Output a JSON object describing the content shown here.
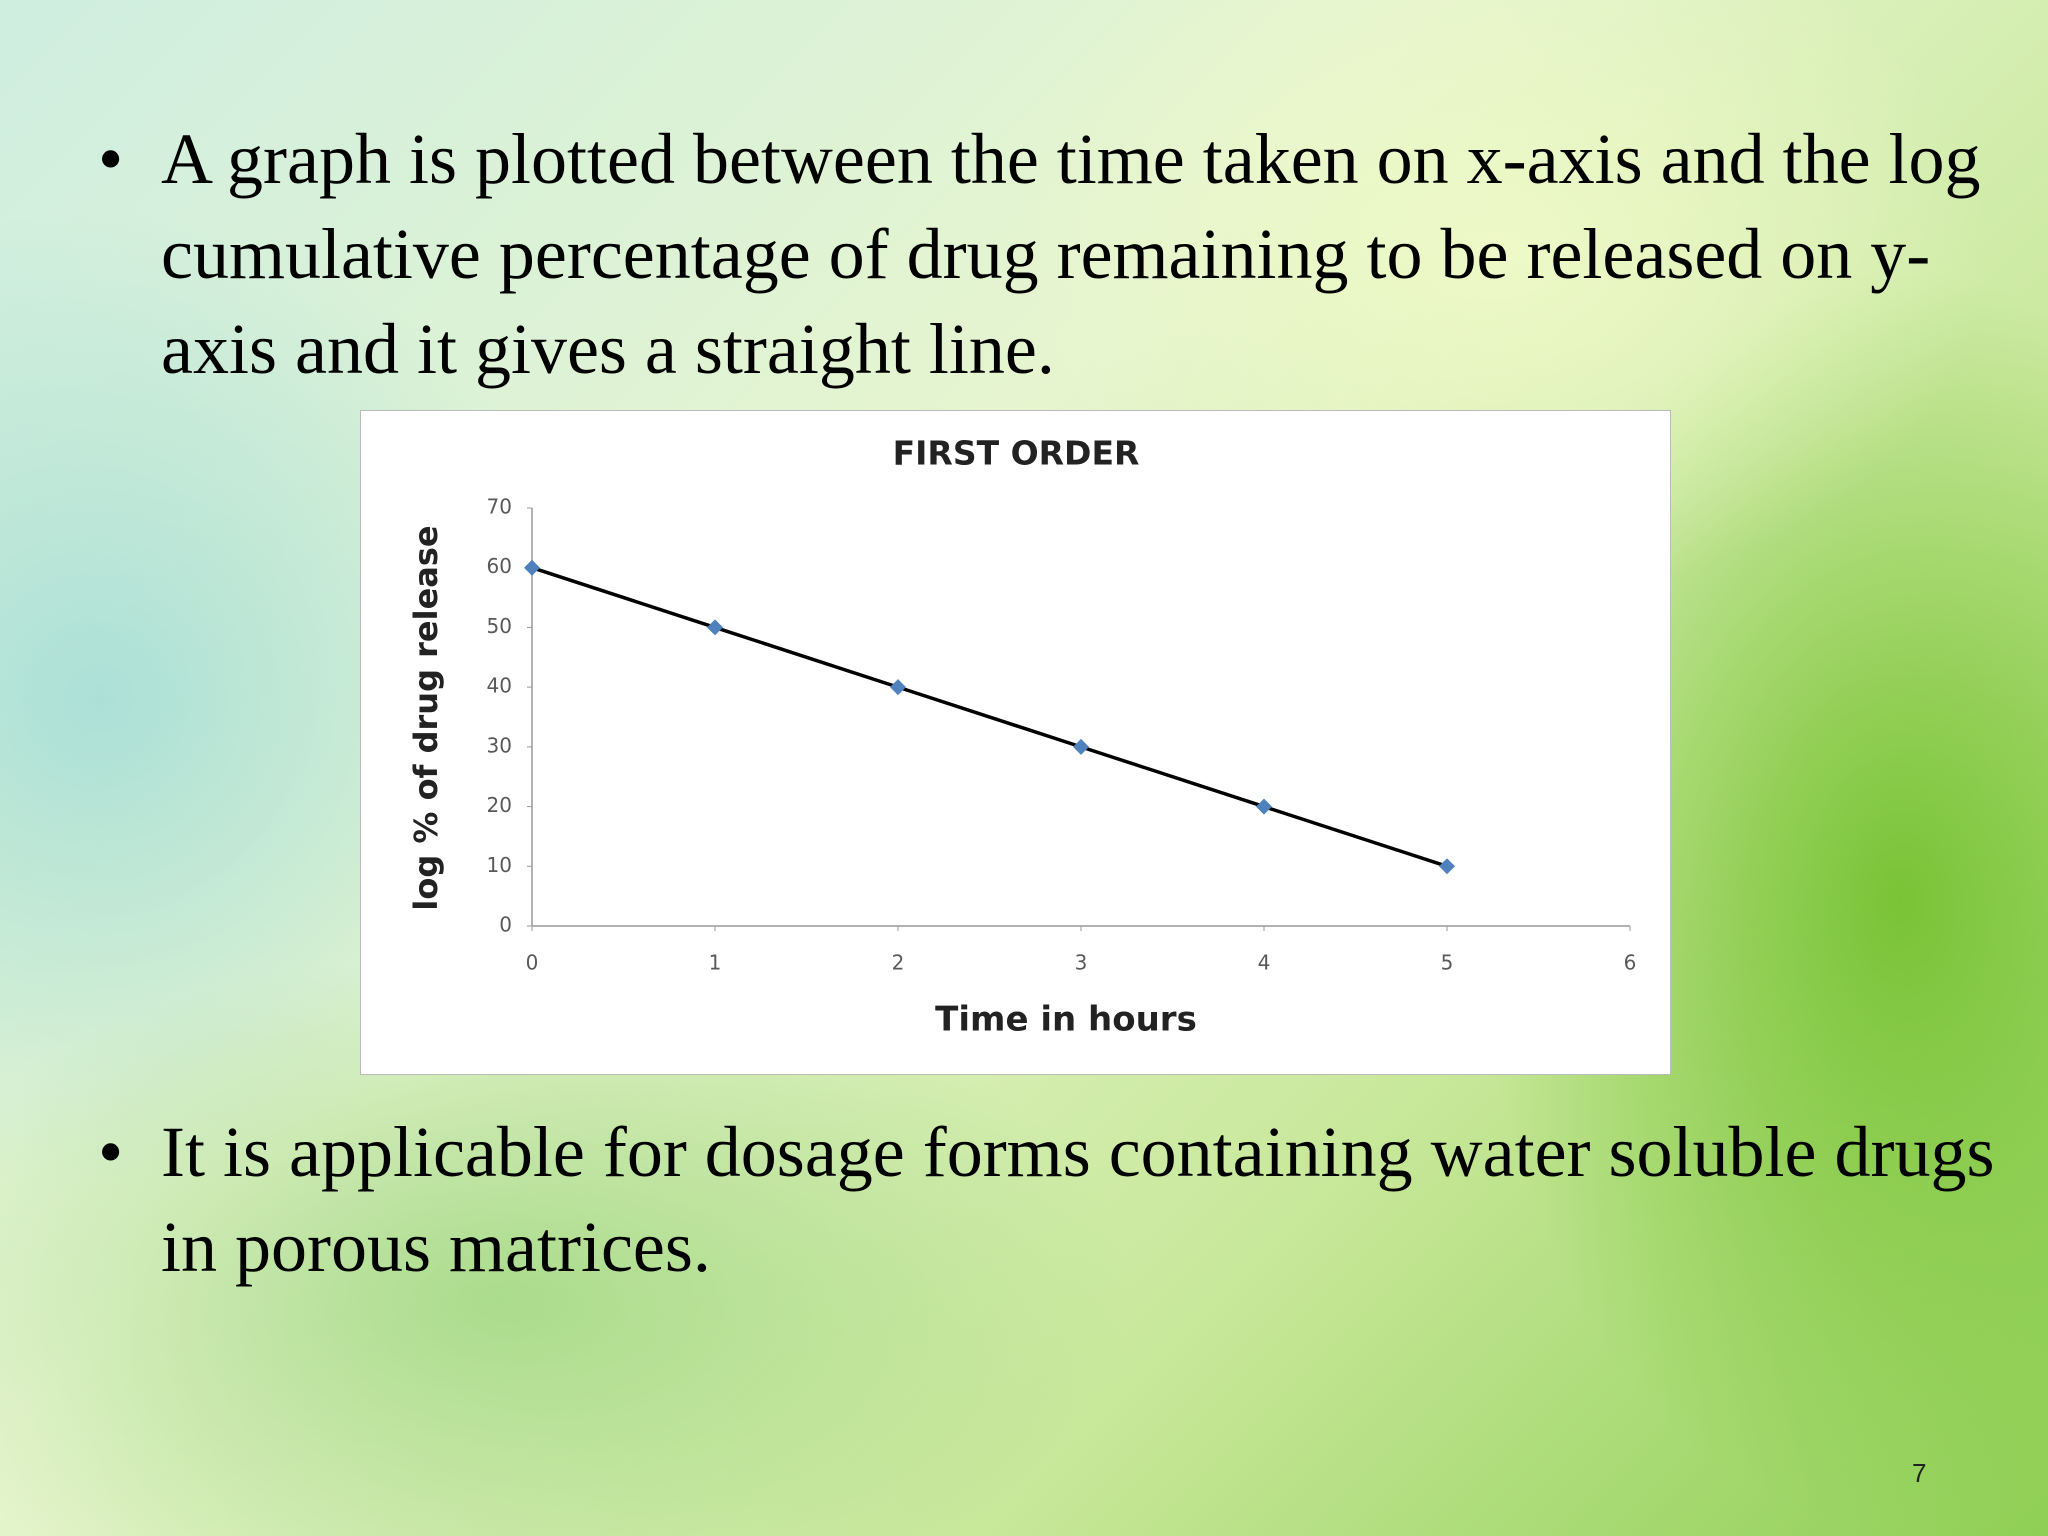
{
  "bullets": [
    "A graph is plotted between the time taken on x-axis and the log cumulative percentage of drug remaining to be released on y-axis and it gives a straight line.",
    "It is applicable for dosage forms containing water soluble drugs in porous matrices."
  ],
  "page_number": "7",
  "chart_data": {
    "type": "line",
    "title": "FIRST ORDER",
    "x_label": "Time in hours",
    "y_label": "log % of drug release",
    "x": [
      0,
      1,
      2,
      3,
      4,
      5
    ],
    "values": [
      60,
      50,
      40,
      30,
      20,
      10
    ],
    "line_color": "#000000",
    "marker_color": "#4f81bd",
    "xlim": [
      0,
      6
    ],
    "xticks": [
      0,
      1,
      2,
      3,
      4,
      5,
      6
    ],
    "ylim": [
      0,
      70
    ],
    "yticks": [
      0,
      10,
      20,
      30,
      40,
      50,
      60,
      70
    ],
    "grid": false
  }
}
